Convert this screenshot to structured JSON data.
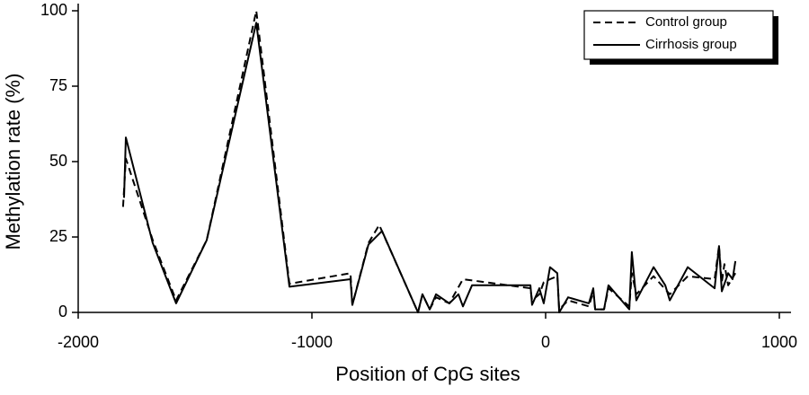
{
  "chart_data": {
    "type": "line",
    "x_label": "Position of CpG sites",
    "y_label": "Methylation rate (%)",
    "xlim": [
      -2000,
      1050
    ],
    "ylim": [
      0,
      100
    ],
    "xticks": [
      -2000,
      -1000,
      0,
      1000
    ],
    "yticks": [
      0,
      25,
      50,
      75,
      100
    ],
    "series": [
      {
        "name": "Control group",
        "color": "#000000",
        "dash": true,
        "x": [
          -1808,
          -1796,
          -1681,
          -1581,
          -1450,
          -1238,
          -1096,
          -835,
          -827,
          -758,
          -712,
          -546,
          -527,
          -496,
          -469,
          -412,
          -354,
          -65,
          -58,
          -27,
          -8,
          19,
          50,
          58,
          96,
          185,
          204,
          212,
          250,
          269,
          358,
          369,
          388,
          462,
          531,
          608,
          723,
          742,
          754,
          765,
          781,
          812
        ],
        "values": [
          35,
          51,
          24,
          4,
          24,
          100,
          9.5,
          13,
          2.5,
          23,
          29,
          0,
          6,
          1,
          5,
          3,
          11,
          8,
          4,
          6,
          10,
          11,
          12,
          1,
          4,
          2,
          7,
          1,
          1,
          8,
          2,
          13,
          6,
          12,
          6,
          12,
          11,
          22,
          10,
          16,
          9,
          13
        ]
      },
      {
        "name": "Cirrhosis group",
        "color": "#000000",
        "dash": false,
        "x": [
          -1804,
          -1796,
          -1681,
          -1581,
          -1450,
          -1238,
          -1096,
          -835,
          -827,
          -758,
          -700,
          -546,
          -527,
          -496,
          -469,
          -412,
          -373,
          -354,
          -315,
          -65,
          -58,
          -27,
          -8,
          19,
          50,
          58,
          96,
          185,
          204,
          212,
          250,
          269,
          358,
          369,
          388,
          462,
          512,
          531,
          608,
          723,
          742,
          754,
          781,
          800,
          812
        ],
        "values": [
          38,
          58,
          23,
          3,
          24,
          96,
          8.5,
          11,
          2.5,
          22.5,
          27,
          0,
          6,
          1,
          6,
          3,
          6,
          2,
          9,
          9,
          2.5,
          8,
          3,
          15,
          13,
          0,
          5,
          3,
          8,
          1,
          1,
          9,
          1,
          20,
          4,
          15,
          9,
          4,
          15,
          8,
          22,
          7,
          13,
          11,
          17
        ]
      }
    ]
  }
}
